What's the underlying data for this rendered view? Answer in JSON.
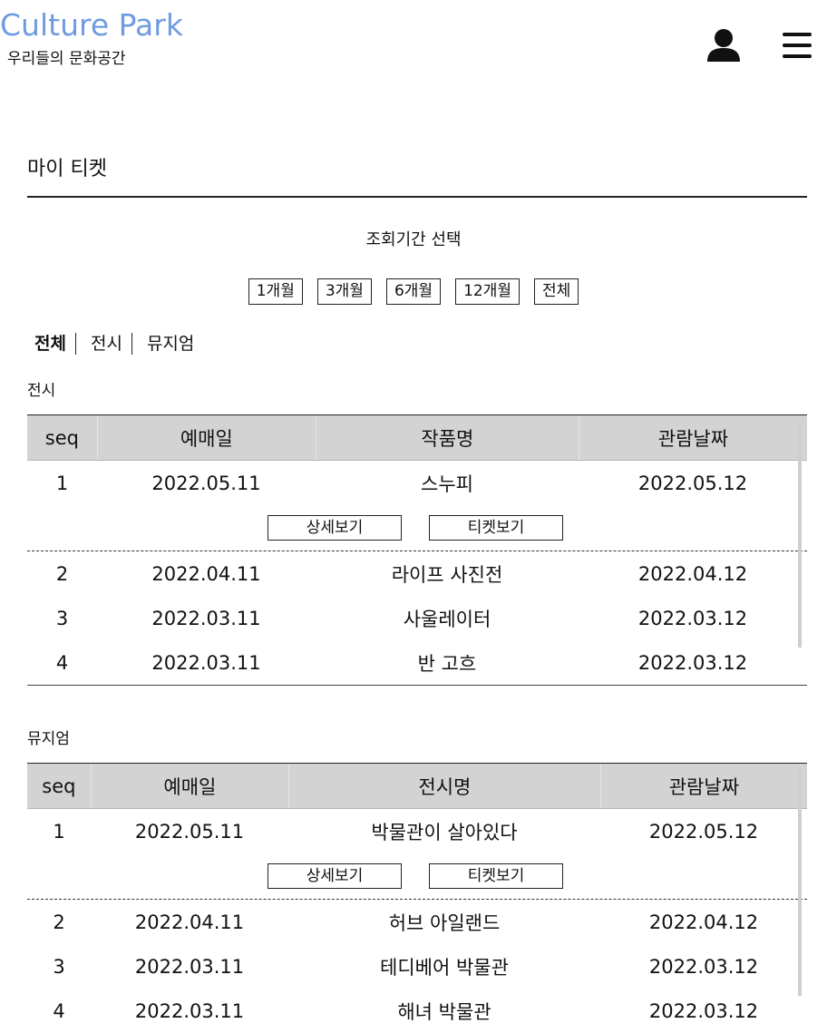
{
  "header": {
    "logo": "Culture Park",
    "tagline": "우리들의 문화공간"
  },
  "page_title": "마이 티켓",
  "period": {
    "label": "조회기간 선택",
    "options": [
      "1개월",
      "3개월",
      "6개월",
      "12개월",
      "전체"
    ]
  },
  "category_tabs": [
    {
      "label": "전체",
      "active": true
    },
    {
      "label": "전시",
      "active": false
    },
    {
      "label": "뮤지엄",
      "active": false
    }
  ],
  "exhibition": {
    "section_label": "전시",
    "columns": [
      "seq",
      "예매일",
      "작품명",
      "관람날짜"
    ],
    "rows": [
      {
        "seq": "1",
        "booked": "2022.05.11",
        "title": "스누피",
        "visit": "2022.05.12"
      },
      {
        "seq": "2",
        "booked": "2022.04.11",
        "title": "라이프 사진전",
        "visit": "2022.04.12"
      },
      {
        "seq": "3",
        "booked": "2022.03.11",
        "title": "사울레이터",
        "visit": "2022.03.12"
      },
      {
        "seq": "4",
        "booked": "2022.03.11",
        "title": "반 고흐",
        "visit": "2022.03.12"
      }
    ],
    "detail_button": "상세보기",
    "ticket_button": "티켓보기"
  },
  "museum": {
    "section_label": "뮤지엄",
    "columns": [
      "seq",
      "예매일",
      "전시명",
      "관람날짜"
    ],
    "rows": [
      {
        "seq": "1",
        "booked": "2022.05.11",
        "title": "박물관이 살아있다",
        "visit": "2022.05.12"
      },
      {
        "seq": "2",
        "booked": "2022.04.11",
        "title": "허브 아일랜드",
        "visit": "2022.04.12"
      },
      {
        "seq": "3",
        "booked": "2022.03.11",
        "title": "테디베어 박물관",
        "visit": "2022.03.12"
      },
      {
        "seq": "4",
        "booked": "2022.03.11",
        "title": "해녀 박물관",
        "visit": "2022.03.12"
      }
    ],
    "detail_button": "상세보기",
    "ticket_button": "티켓보기"
  },
  "colors": {
    "logo": "#6f9be0",
    "table_header_bg": "#d3d3d3"
  },
  "icons": [
    "user-icon",
    "hamburger-menu-icon"
  ]
}
